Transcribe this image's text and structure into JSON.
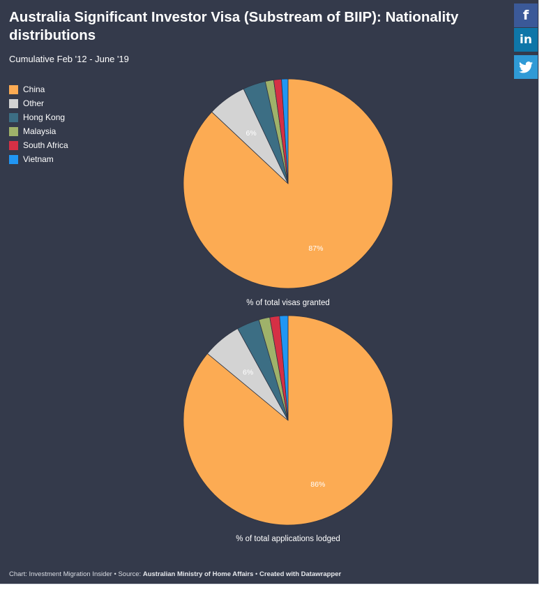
{
  "header": {
    "title": "Australia Significant Investor Visa (Substream of BIIP): Nationality distributions",
    "subtitle": "Cumulative Feb '12 - June '19"
  },
  "share": {
    "facebook_icon": "f",
    "linkedin_icon": "in",
    "twitter_icon": "twitter-bird-icon"
  },
  "colors": {
    "background": "#343a4b",
    "China": "#fcab53",
    "Other": "#d3d3d3",
    "Hong Kong": "#3c6e84",
    "Malaysia": "#9fb26a",
    "South Africa": "#d53045",
    "Vietnam": "#2196f3"
  },
  "chart_data": [
    {
      "type": "pie",
      "caption": "% of total visas granted",
      "legend": [
        "China",
        "Other",
        "Hong Kong",
        "Malaysia",
        "South Africa",
        "Vietnam"
      ],
      "legend_position": "top-left",
      "slices": [
        {
          "name": "China",
          "value": 87,
          "label": "87%"
        },
        {
          "name": "Other",
          "value": 6,
          "label": "6%"
        },
        {
          "name": "Hong Kong",
          "value": 3.5,
          "label": ""
        },
        {
          "name": "Malaysia",
          "value": 1.3,
          "label": ""
        },
        {
          "name": "South Africa",
          "value": 1.2,
          "label": ""
        },
        {
          "name": "Vietnam",
          "value": 1,
          "label": ""
        }
      ]
    },
    {
      "type": "pie",
      "caption": "% of total applications lodged",
      "legend": [
        "China",
        "Other",
        "Hong Kong",
        "Malaysia",
        "South Africa",
        "Vietnam"
      ],
      "legend_position": "top-left",
      "slices": [
        {
          "name": "China",
          "value": 86,
          "label": "86%"
        },
        {
          "name": "Other",
          "value": 6,
          "label": "6%"
        },
        {
          "name": "Hong Kong",
          "value": 3.5,
          "label": ""
        },
        {
          "name": "Malaysia",
          "value": 1.7,
          "label": ""
        },
        {
          "name": "South Africa",
          "value": 1.5,
          "label": ""
        },
        {
          "name": "Vietnam",
          "value": 1.3,
          "label": ""
        }
      ]
    }
  ],
  "footer": {
    "chart_by": "Chart: Investment Migration Insider",
    "sep": " • ",
    "source_label": "Source: ",
    "source": "Australian Ministry of Home Affairs",
    "created": "Created with Datawrapper"
  }
}
